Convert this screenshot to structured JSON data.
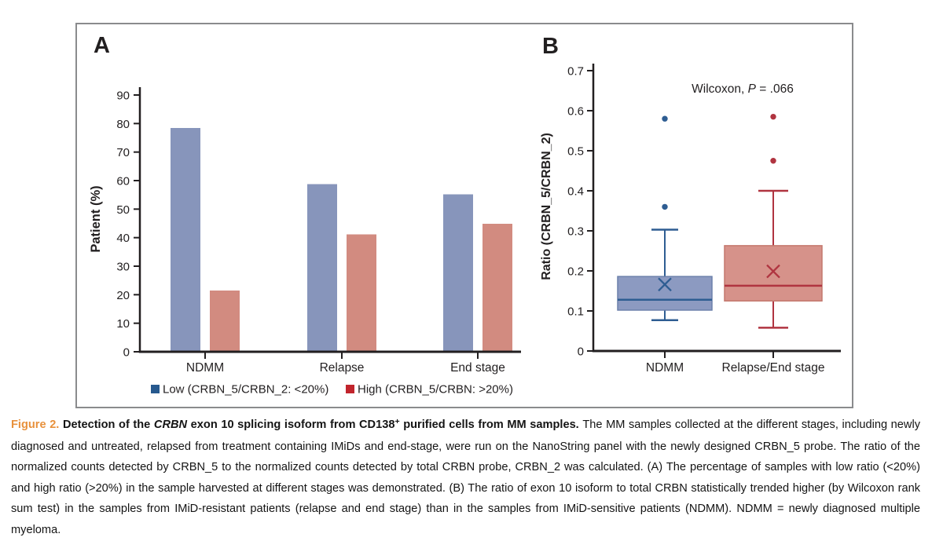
{
  "figure": {
    "panels": [
      {
        "label": "A"
      },
      {
        "label": "B"
      }
    ]
  },
  "colors": {
    "bar_blue": "#8795bb",
    "bar_red": "#d28b80",
    "box_blue_fill": "#8c9ac1",
    "box_blue_edge": "#6c80ab",
    "box_blue_line": "#2e5d92",
    "box_red_fill": "#d6928a",
    "box_red_edge": "#c4786e",
    "box_red_line": "#b03440",
    "legend_blue": "#27598e",
    "legend_red": "#c1242c",
    "axis": "#221f20",
    "border": "#8a8b8d",
    "caption_label": "#e8913c"
  },
  "chart_data": [
    {
      "type": "bar",
      "panel": "A",
      "title": "",
      "xlabel": "",
      "ylabel": "Patient (%)",
      "ylim": [
        0,
        90
      ],
      "ytick_step": 10,
      "grid": false,
      "legend_position": "bottom",
      "categories": [
        "NDMM",
        "Relapse",
        "End stage"
      ],
      "series": [
        {
          "name": "Low (CRBN_5/CRBN_2: <20%)",
          "color_key": "bar_blue",
          "legend_color_key": "legend_blue",
          "values": [
            78.5,
            58.8,
            55.2
          ]
        },
        {
          "name": "High (CRBN_5/CRBN: >20%)",
          "color_key": "bar_red",
          "legend_color_key": "legend_red",
          "values": [
            21.5,
            41.2,
            44.8
          ]
        }
      ]
    },
    {
      "type": "boxplot",
      "panel": "B",
      "title": "",
      "xlabel": "",
      "ylabel": "Ratio (CRBN_5/CRBN_2)",
      "ylim": [
        0,
        0.7
      ],
      "ytick_step": 0.1,
      "grid": false,
      "annotation": {
        "prefix": "Wilcoxon, ",
        "italic": "P",
        "suffix": " = .066"
      },
      "categories": [
        "NDMM",
        "Relapse/End stage"
      ],
      "boxes": [
        {
          "label": "NDMM",
          "fill_key": "box_blue_fill",
          "edge_key": "box_blue_edge",
          "line_key": "box_blue_line",
          "whisker_low": 0.077,
          "q1": 0.102,
          "median": 0.128,
          "q3": 0.186,
          "whisker_high": 0.303,
          "mean": 0.166,
          "outliers": [
            0.36,
            0.58
          ]
        },
        {
          "label": "Relapse/End stage",
          "fill_key": "box_red_fill",
          "edge_key": "box_red_edge",
          "line_key": "box_red_line",
          "whisker_low": 0.058,
          "q1": 0.125,
          "median": 0.163,
          "q3": 0.263,
          "whisker_high": 0.4,
          "mean": 0.199,
          "outliers": [
            0.475,
            0.585
          ]
        }
      ]
    }
  ],
  "caption": {
    "segments": [
      {
        "text": "Figure 2. ",
        "style": "figure-label"
      },
      {
        "text": "Detection of the ",
        "style": "bold"
      },
      {
        "text": "CRBN",
        "style": "bold-italic"
      },
      {
        "text": " exon 10 splicing isoform from CD138",
        "style": "bold"
      },
      {
        "text": "+",
        "style": "bold-sup"
      },
      {
        "text": " purified cells from MM samples. ",
        "style": "bold"
      },
      {
        "text": "The MM samples collected at the different stages, including newly diagnosed and untreated, relapsed from treatment containing IMiDs and end-stage, were run on the NanoString panel with the newly designed CRBN_5 probe. The ratio of the normalized counts detected by CRBN_5 to the normalized counts detected by total CRBN probe, CRBN_2 was calculated. (A) The percentage of samples with low ratio (<20%) and high ratio (>20%) in the sample harvested at different stages was demonstrated. (B) The ratio of exon 10 isoform to total CRBN statistically trended higher (by Wilcoxon rank sum test) in the samples from IMiD-resistant patients (relapse and end stage) than in the samples from IMiD-sensitive patients (NDMM). NDMM = newly diagnosed multiple myeloma.",
        "style": "normal"
      }
    ]
  }
}
